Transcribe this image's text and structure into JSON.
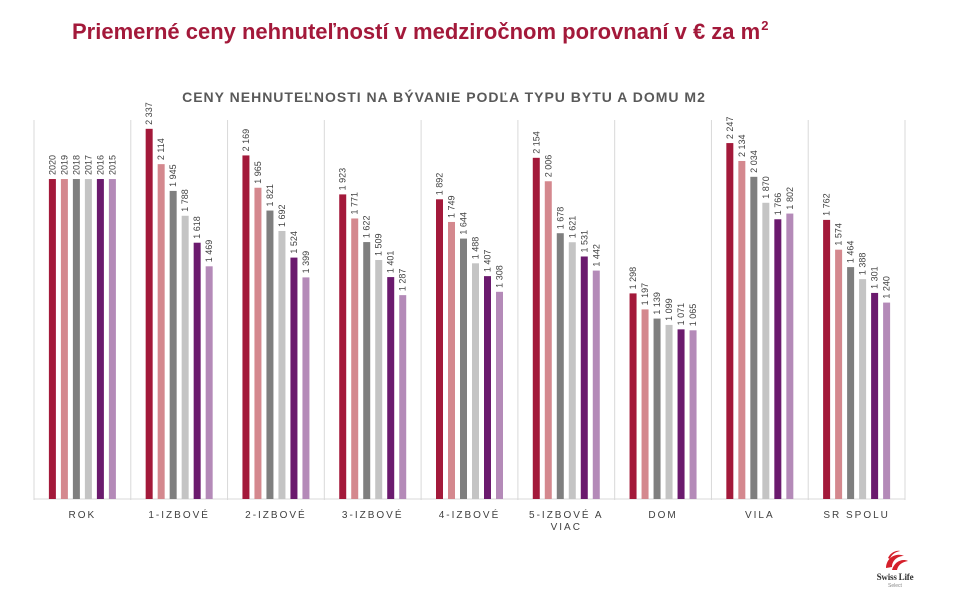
{
  "page": {
    "title": "Priemerné ceny nehnuteľností v medziročnom porovnaní v € za m",
    "title_superscript": "2"
  },
  "logo": {
    "name": "Swiss Life",
    "sub": "Select"
  },
  "chart_data": {
    "type": "bar",
    "title": "CENY NEHNUTEĽNOSTI NA BÝVANIE PODĽA TYPU BYTU A DOMU M2",
    "xlabel": "",
    "ylabel": "",
    "ylim": [
      0,
      2500
    ],
    "grid": false,
    "categories": [
      "ROK",
      "1-IZBOVÉ",
      "2-IZBOVÉ",
      "3-IZBOVÉ",
      "4-IZBOVÉ",
      "5-IZBOVÉ A VIAC",
      "DOM",
      "VILA",
      "SR SPOLU"
    ],
    "series": [
      {
        "name": "2020",
        "color": "#a3193a",
        "values": [
          null,
          2337,
          2169,
          1923,
          1892,
          2154,
          1298,
          2247,
          1762
        ],
        "labels": [
          "2020",
          "2 337",
          "2 169",
          "1 923",
          "1 892",
          "2 154",
          "1 298",
          "2 247",
          "1 762"
        ]
      },
      {
        "name": "2019",
        "color": "#d4888e",
        "values": [
          null,
          2114,
          1965,
          1771,
          1749,
          2006,
          1197,
          2134,
          1574
        ],
        "labels": [
          "2019",
          "2 114",
          "1 965",
          "1 771",
          "1 749",
          "2 006",
          "1 197",
          "2 134",
          "1 574"
        ]
      },
      {
        "name": "2018",
        "color": "#7f7f7f",
        "values": [
          null,
          1945,
          1821,
          1622,
          1644,
          1678,
          1139,
          2034,
          1464
        ],
        "labels": [
          "2018",
          "1 945",
          "1 821",
          "1 622",
          "1 644",
          "1 678",
          "1 139",
          "2 034",
          "1 464"
        ]
      },
      {
        "name": "2017",
        "color": "#c4c4c4",
        "values": [
          null,
          1788,
          1692,
          1509,
          1488,
          1621,
          1099,
          1870,
          1388
        ],
        "labels": [
          "2017",
          "1 788",
          "1 692",
          "1 509",
          "1 488",
          "1 621",
          "1 099",
          "1 870",
          "1 388"
        ]
      },
      {
        "name": "2016",
        "color": "#6b1a6e",
        "values": [
          null,
          1618,
          1524,
          1401,
          1407,
          1531,
          1071,
          1766,
          1301
        ],
        "labels": [
          "2016",
          "1 618",
          "1 524",
          "1 401",
          "1 407",
          "1 531",
          "1 071",
          "1 766",
          "1 301"
        ]
      },
      {
        "name": "2015",
        "color": "#b48ab8",
        "values": [
          null,
          1469,
          1399,
          1287,
          1308,
          1442,
          1065,
          1802,
          1240
        ],
        "labels": [
          "2015",
          "1 469",
          "1 399",
          "1 287",
          "1 308",
          "1 442",
          "1 065",
          "1 802",
          "1 240"
        ]
      }
    ],
    "rok_bar_value": 2020
  }
}
